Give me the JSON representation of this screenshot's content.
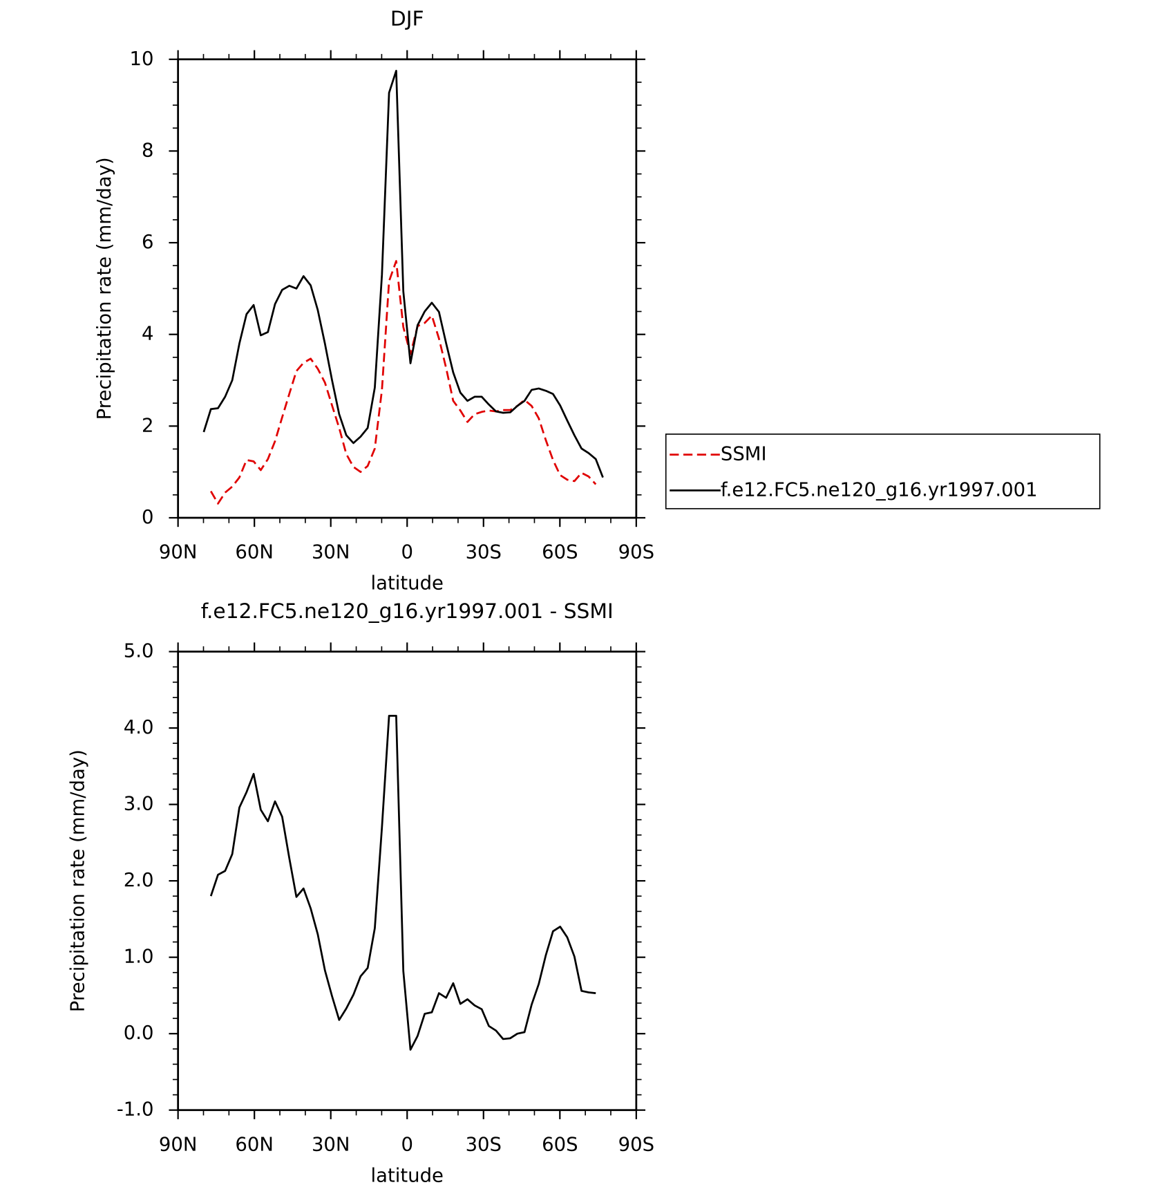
{
  "chart_data": [
    {
      "type": "line",
      "title": "DJF",
      "xlabel": "latitude",
      "ylabel": "Precipitation rate (mm/day)",
      "x": [
        79.9,
        77.1,
        74.3,
        71.5,
        68.7,
        65.9,
        63.1,
        60.3,
        57.5,
        54.7,
        51.9,
        49.1,
        46.3,
        43.5,
        40.7,
        37.9,
        35.1,
        32.3,
        29.5,
        26.7,
        23.9,
        21.1,
        18.3,
        15.5,
        12.7,
        9.9,
        7.1,
        4.3,
        1.5,
        -1.3,
        -4.1,
        -6.9,
        -9.7,
        -12.5,
        -15.3,
        -18.1,
        -20.9,
        -23.7,
        -26.5,
        -29.3,
        -32.1,
        -34.9,
        -37.7,
        -40.5,
        -43.3,
        -46.1,
        -48.9,
        -51.7,
        -54.5,
        -57.3,
        -60.1,
        -62.9,
        -65.7,
        -68.5,
        -71.3,
        -74.1,
        -76.9
      ],
      "series": [
        {
          "name": "SSMI",
          "color": "#e00000",
          "dashed": true,
          "values": [
            null,
            0.58,
            0.31,
            0.55,
            0.68,
            0.88,
            1.26,
            1.23,
            1.04,
            1.28,
            1.67,
            2.19,
            2.7,
            3.2,
            3.38,
            3.47,
            3.25,
            2.95,
            2.45,
            1.96,
            1.39,
            1.11,
            1.0,
            1.13,
            1.51,
            2.79,
            5.16,
            5.6,
            4.16,
            3.57,
            4.18,
            4.25,
            4.41,
            3.91,
            3.27,
            2.55,
            2.34,
            2.09,
            2.26,
            2.31,
            2.34,
            2.32,
            2.35,
            2.35,
            2.44,
            2.57,
            2.44,
            2.17,
            1.69,
            1.26,
            0.93,
            0.83,
            0.8,
            0.98,
            0.9,
            0.73,
            null
          ]
        },
        {
          "name": "f.e12.FC5.ne120_g16.yr1997.001",
          "color": "#000000",
          "dashed": false,
          "values": [
            1.87,
            2.37,
            2.39,
            2.64,
            3.0,
            3.8,
            4.44,
            4.64,
            3.98,
            4.05,
            4.66,
            4.97,
            5.06,
            5.0,
            5.27,
            5.07,
            4.53,
            3.8,
            3.0,
            2.26,
            1.8,
            1.63,
            1.77,
            1.96,
            2.84,
            5.3,
            9.27,
            9.75,
            4.94,
            3.37,
            4.2,
            4.5,
            4.69,
            4.49,
            3.81,
            3.17,
            2.73,
            2.55,
            2.64,
            2.64,
            2.47,
            2.32,
            2.29,
            2.3,
            2.44,
            2.55,
            2.79,
            2.82,
            2.77,
            2.7,
            2.45,
            2.12,
            1.8,
            1.51,
            1.41,
            1.28,
            0.88
          ]
        }
      ],
      "xlim": [
        90,
        -90
      ],
      "xticks": [
        {
          "value": 90,
          "label": "90N"
        },
        {
          "value": 60,
          "label": "60N"
        },
        {
          "value": 30,
          "label": "30N"
        },
        0,
        {
          "value": -30,
          "label": "30S"
        },
        {
          "value": -60,
          "label": "60S"
        },
        {
          "value": -90,
          "label": "90S"
        }
      ],
      "ylim": [
        0,
        10
      ],
      "yticks": [
        0,
        2,
        4,
        6,
        8,
        10
      ],
      "legend": "right"
    },
    {
      "type": "line",
      "title": "f.e12.FC5.ne120_g16.yr1997.001 - SSMI",
      "xlabel": "latitude",
      "ylabel": "Precipitation rate (mm/day)",
      "x": [
        79.9,
        77.1,
        74.3,
        71.5,
        68.7,
        65.9,
        63.1,
        60.3,
        57.5,
        54.7,
        51.9,
        49.1,
        46.3,
        43.5,
        40.7,
        37.9,
        35.1,
        32.3,
        29.5,
        26.7,
        23.9,
        21.1,
        18.3,
        15.5,
        12.7,
        9.9,
        7.1,
        4.3,
        1.5,
        -1.3,
        -4.1,
        -6.9,
        -9.7,
        -12.5,
        -15.3,
        -18.1,
        -20.9,
        -23.7,
        -26.5,
        -29.3,
        -32.1,
        -34.9,
        -37.7,
        -40.5,
        -43.3,
        -46.1,
        -48.9,
        -51.7,
        -54.5,
        -57.3,
        -60.1,
        -62.9,
        -65.7,
        -68.5,
        -71.3,
        -74.1,
        -76.9
      ],
      "series": [
        {
          "color": "#000000",
          "dashed": false,
          "values": [
            null,
            1.8,
            2.08,
            2.13,
            2.35,
            2.96,
            3.16,
            3.4,
            2.93,
            2.78,
            3.04,
            2.84,
            2.3,
            1.79,
            1.9,
            1.64,
            1.3,
            0.83,
            0.49,
            0.18,
            0.33,
            0.51,
            0.75,
            0.86,
            1.38,
            2.7,
            4.16,
            4.16,
            0.82,
            -0.21,
            -0.03,
            0.26,
            0.28,
            0.53,
            0.47,
            0.66,
            0.39,
            0.45,
            0.37,
            0.32,
            0.1,
            0.04,
            -0.07,
            -0.06,
            0.0,
            0.02,
            0.38,
            0.65,
            1.03,
            1.34,
            1.4,
            1.26,
            1.01,
            0.56,
            0.54,
            0.53,
            null
          ]
        }
      ],
      "xlim": [
        90,
        -90
      ],
      "xticks": [
        {
          "value": 90,
          "label": "90N"
        },
        {
          "value": 60,
          "label": "60N"
        },
        {
          "value": 30,
          "label": "30N"
        },
        0,
        {
          "value": -30,
          "label": "30S"
        },
        {
          "value": -60,
          "label": "60S"
        },
        {
          "value": -90,
          "label": "90S"
        }
      ],
      "ylim": [
        -1,
        5
      ],
      "yticks": [
        {
          "value": -1,
          "label": "-1.0"
        },
        {
          "value": 0,
          "label": "0.0"
        },
        {
          "value": 1,
          "label": "1.0"
        },
        {
          "value": 2,
          "label": "2.0"
        },
        {
          "value": 3,
          "label": "3.0"
        },
        {
          "value": 4,
          "label": "4.0"
        },
        {
          "value": 5,
          "label": "5.0"
        }
      ]
    }
  ]
}
